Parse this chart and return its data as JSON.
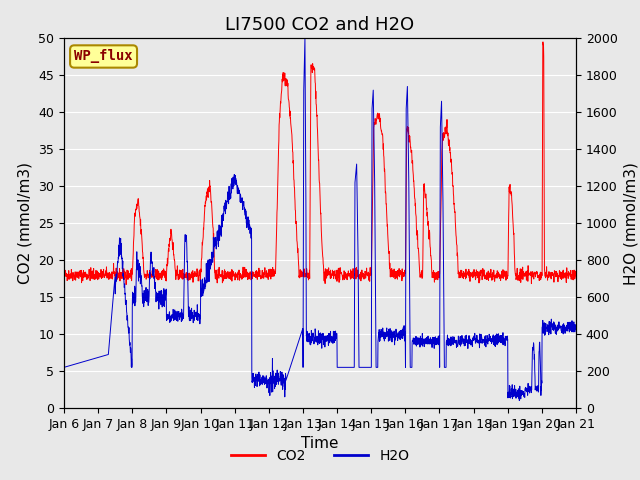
{
  "title": "LI7500 CO2 and H2O",
  "xlabel": "Time",
  "ylabel_left": "CO2 (mmol/m3)",
  "ylabel_right": "H2O (mmol/m3)",
  "ylim_left": [
    0,
    50
  ],
  "ylim_right": [
    0,
    2000
  ],
  "yticks_left": [
    0,
    5,
    10,
    15,
    20,
    25,
    30,
    35,
    40,
    45,
    50
  ],
  "yticks_right": [
    0,
    200,
    400,
    600,
    800,
    1000,
    1200,
    1400,
    1600,
    1800,
    2000
  ],
  "xtick_labels": [
    "Jan 6",
    "Jan 7",
    "Jan 8",
    "Jan 9",
    "Jan 10",
    "Jan 11",
    "Jan 12",
    "Jan 13",
    "Jan 14",
    "Jan 15",
    "Jan 16",
    "Jan 17",
    "Jan 18",
    "Jan 19",
    "Jan 20",
    "Jan 21"
  ],
  "co2_color": "#ff0000",
  "h2o_color": "#0000cc",
  "bg_color": "#e8e8e8",
  "axes_bg_color": "#e8e8e8",
  "site_label": "WP_flux",
  "site_label_color": "#8b0000",
  "site_label_bg": "#ffff99",
  "legend_labels": [
    "CO2",
    "H2O"
  ],
  "title_fontsize": 13,
  "axis_label_fontsize": 11,
  "tick_fontsize": 9
}
